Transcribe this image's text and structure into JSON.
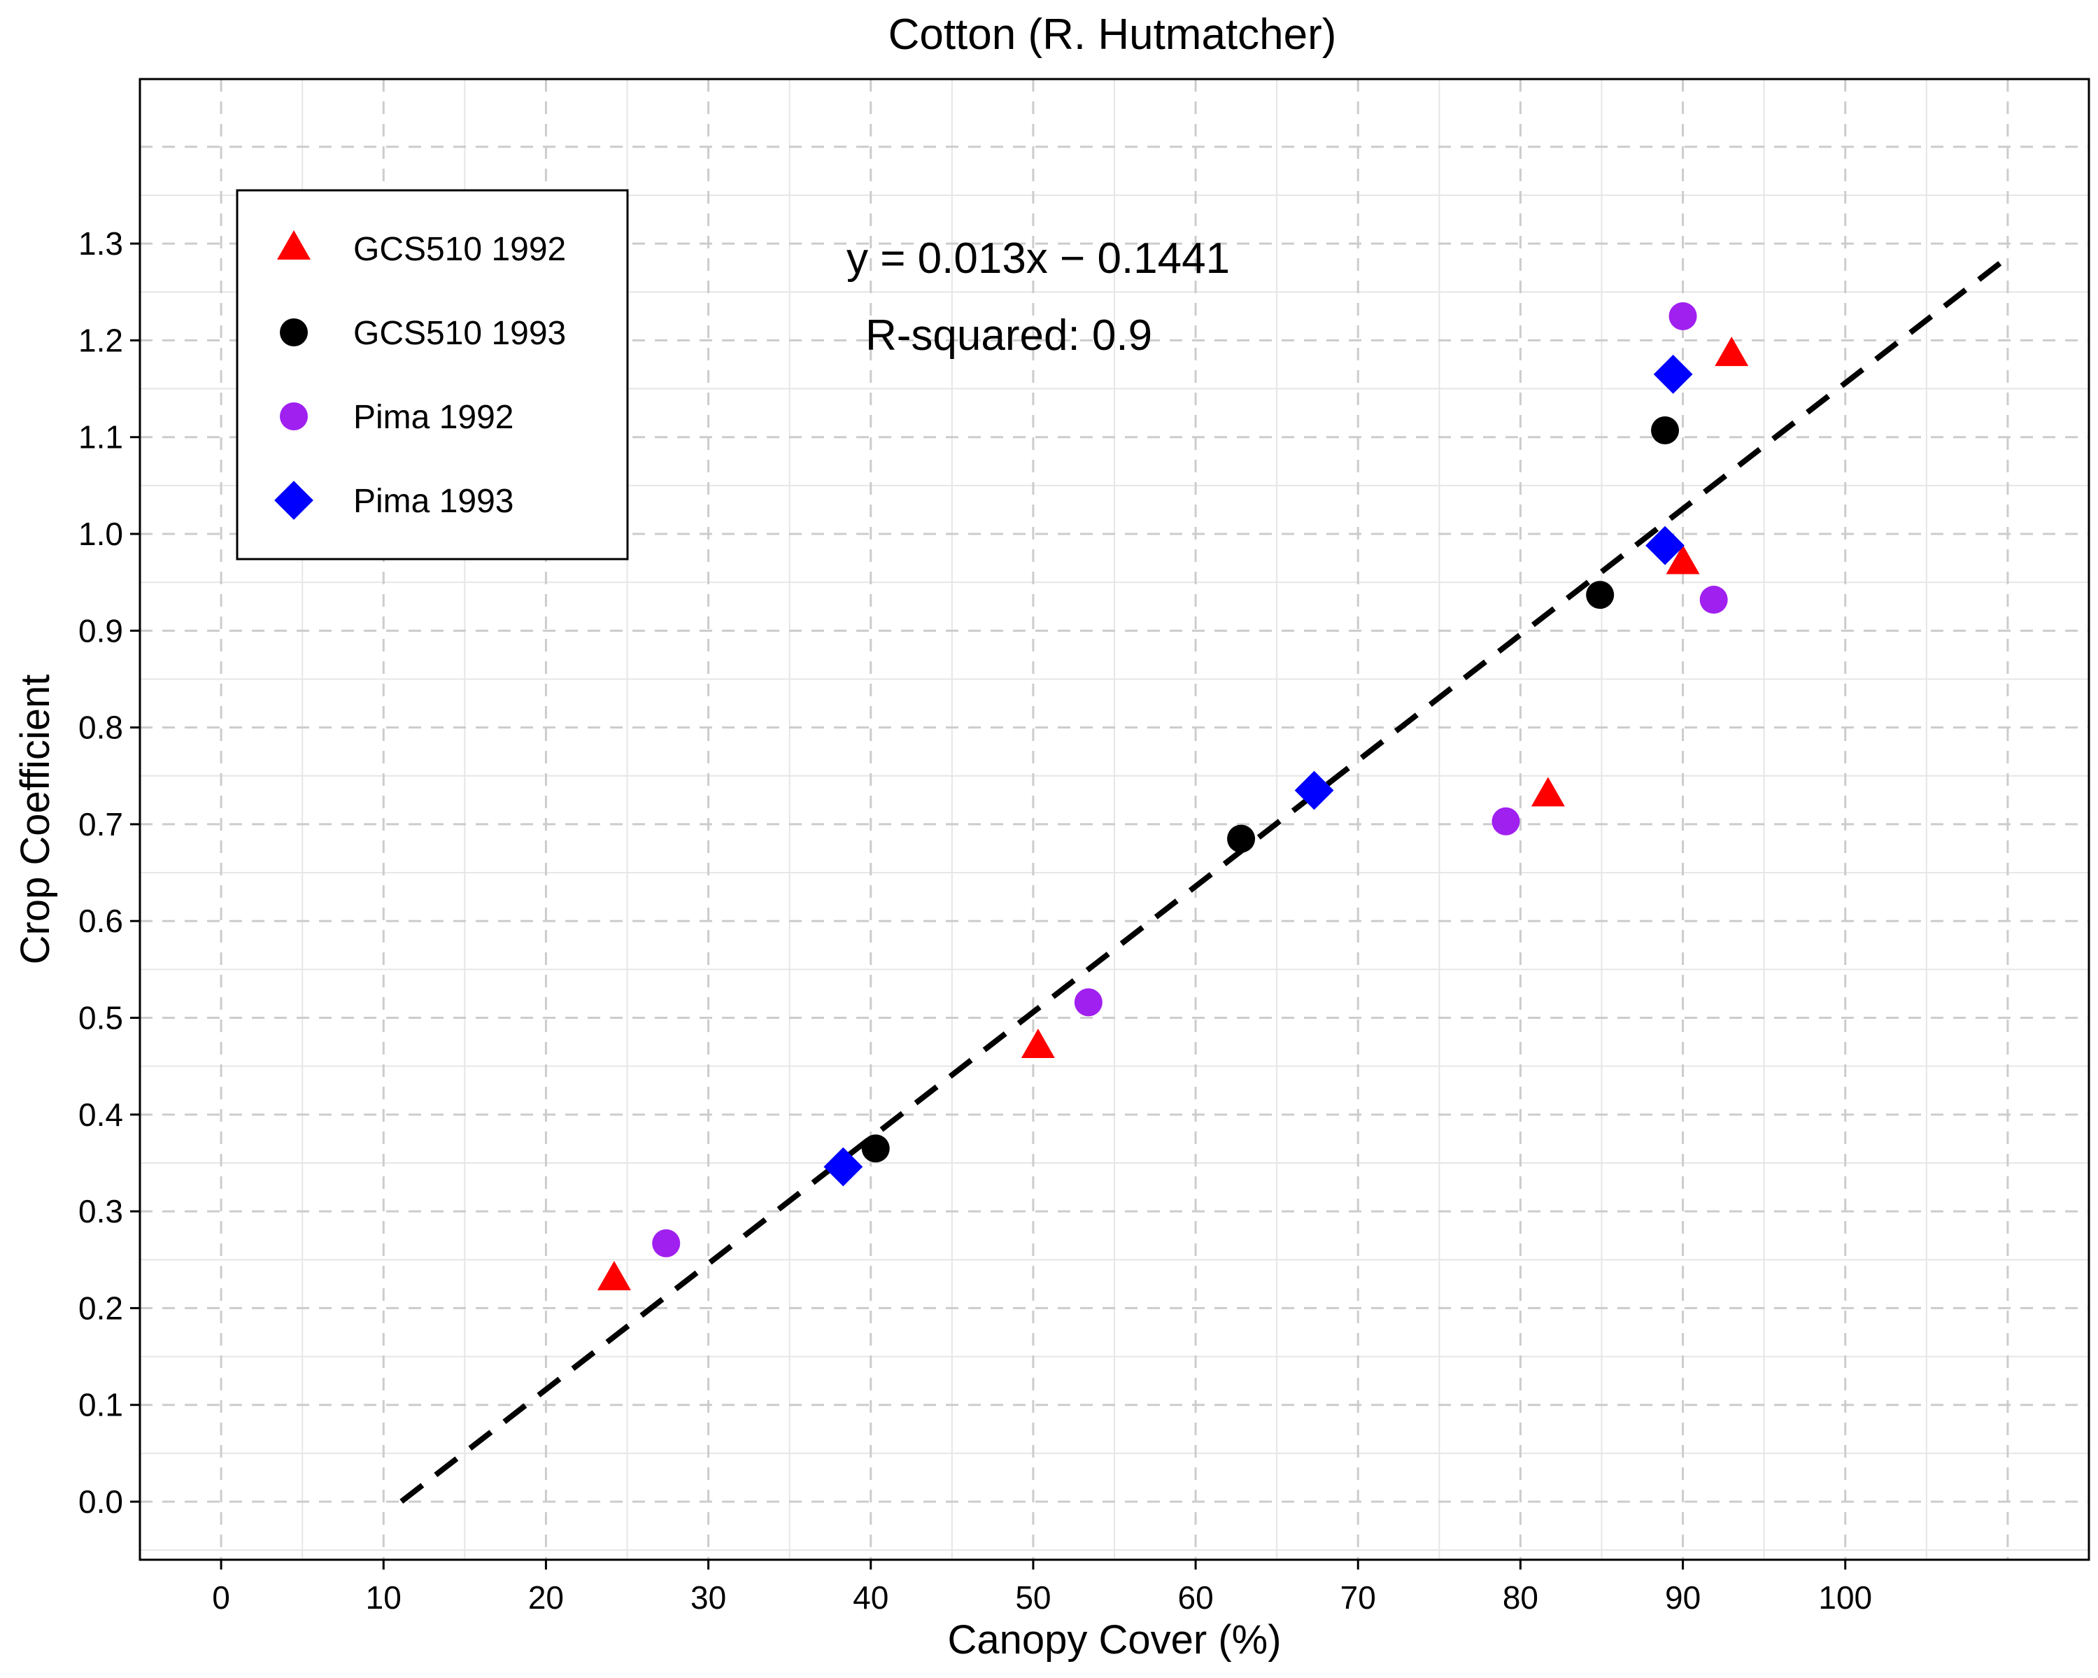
{
  "chart_data": {
    "type": "scatter",
    "title": "Cotton (R. Hutmatcher)",
    "xlabel": "Canopy Cover (%)",
    "ylabel": "Crop Coefficient",
    "xlim": [
      -5,
      115
    ],
    "ylim": [
      -0.06,
      1.47
    ],
    "xticks": [
      0,
      10,
      20,
      30,
      40,
      50,
      60,
      70,
      80,
      90,
      100
    ],
    "yticks": [
      0.0,
      0.1,
      0.2,
      0.3,
      0.4,
      0.5,
      0.6,
      0.7,
      0.8,
      0.9,
      1.0,
      1.1,
      1.2,
      1.3
    ],
    "x_tick_labels": [
      "0",
      "10",
      "20",
      "30",
      "40",
      "50",
      "60",
      "70",
      "80",
      "90",
      "100"
    ],
    "y_tick_labels": [
      "0.0",
      "0.1",
      "0.2",
      "0.3",
      "0.4",
      "0.5",
      "0.6",
      "0.7",
      "0.8",
      "0.9",
      "1.0",
      "1.1",
      "1.2",
      "1.3"
    ],
    "grid": true,
    "legend_position": "top-left",
    "series": [
      {
        "name": "GCS510 1992",
        "marker": "triangle",
        "color": "#ff0000",
        "points": [
          [
            24.2,
            0.23
          ],
          [
            50.3,
            0.47
          ],
          [
            81.7,
            0.73
          ],
          [
            90.0,
            0.97
          ],
          [
            93.0,
            1.185
          ]
        ]
      },
      {
        "name": "GCS510 1993",
        "marker": "circle",
        "color": "#000000",
        "points": [
          [
            40.3,
            0.365
          ],
          [
            62.8,
            0.685
          ],
          [
            84.9,
            0.937
          ],
          [
            88.9,
            1.107
          ]
        ]
      },
      {
        "name": "Pima 1992",
        "marker": "circle",
        "color": "#a020f0",
        "points": [
          [
            27.4,
            0.267
          ],
          [
            53.4,
            0.516
          ],
          [
            79.1,
            0.703
          ],
          [
            90.0,
            1.225
          ],
          [
            91.9,
            0.932
          ]
        ]
      },
      {
        "name": "Pima 1993",
        "marker": "diamond",
        "color": "#0000ff",
        "points": [
          [
            38.3,
            0.346
          ],
          [
            67.3,
            0.735
          ],
          [
            88.9,
            0.988
          ],
          [
            89.4,
            1.165
          ]
        ]
      }
    ],
    "trendline": {
      "slope": 0.013,
      "intercept": -0.1441,
      "x_range": [
        11.1,
        110
      ],
      "style": "dashed",
      "color": "#000000"
    },
    "annotations": {
      "equation": "y = 0.013x − 0.1441",
      "r_squared": "R-squared:  0.9"
    }
  }
}
